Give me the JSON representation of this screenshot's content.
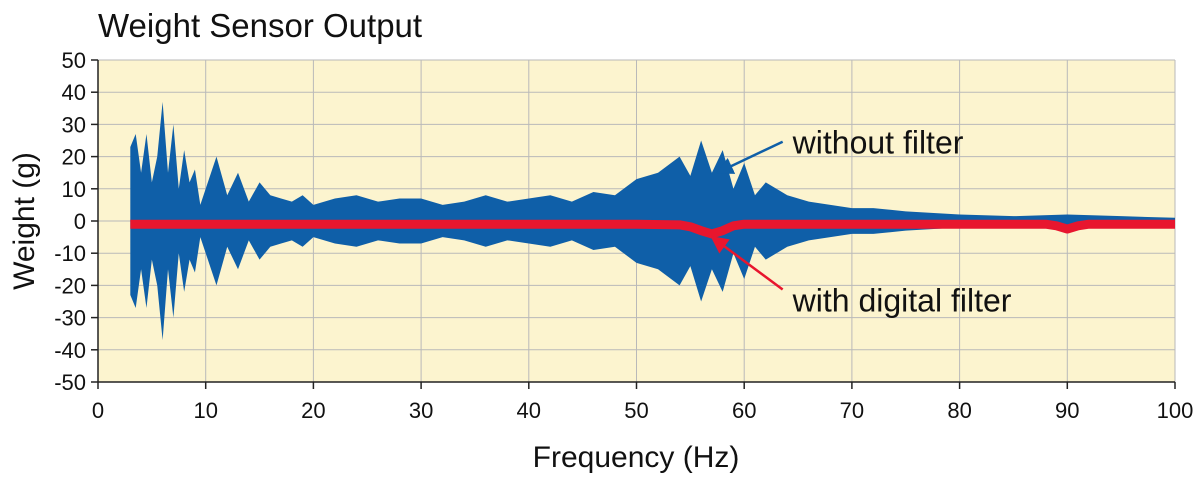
{
  "chart_data": {
    "type": "area",
    "title": "Weight Sensor Output",
    "xlabel": "Frequency (Hz)",
    "ylabel": "Weight (g)",
    "xlim": [
      0,
      100
    ],
    "ylim": [
      -50,
      50
    ],
    "x_ticks": [
      0,
      10,
      20,
      30,
      40,
      50,
      60,
      70,
      80,
      90,
      100
    ],
    "y_ticks": [
      50,
      40,
      30,
      20,
      10,
      0,
      -10,
      -20,
      -30,
      -40,
      -50
    ],
    "grid": true,
    "plot_background": "#fcf4cf",
    "series": [
      {
        "name": "without filter",
        "color": "#0f5fa8",
        "style": "symmetric-envelope",
        "x": [
          3,
          3.5,
          4,
          4.5,
          5,
          5.5,
          6,
          6.5,
          7,
          7.5,
          8,
          8.5,
          9,
          9.5,
          10,
          11,
          12,
          13,
          14,
          15,
          16,
          17,
          18,
          19,
          20,
          22,
          24,
          26,
          28,
          30,
          32,
          34,
          36,
          38,
          40,
          42,
          44,
          46,
          48,
          50,
          52,
          54,
          55,
          56,
          57,
          58,
          59,
          60,
          61,
          62,
          64,
          66,
          68,
          70,
          72,
          75,
          80,
          85,
          90,
          95,
          100
        ],
        "y": [
          23,
          27,
          15,
          27,
          12,
          20,
          37,
          15,
          30,
          10,
          22,
          12,
          16,
          5,
          10,
          20,
          8,
          15,
          6,
          12,
          8,
          7,
          6,
          8,
          5,
          7,
          8,
          6,
          7,
          7,
          5,
          6,
          8,
          6,
          7,
          8,
          6,
          9,
          8,
          13,
          15,
          20,
          14,
          25,
          15,
          22,
          10,
          18,
          8,
          12,
          8,
          6,
          5,
          4,
          4,
          3,
          2,
          1.5,
          2,
          1.5,
          1
        ]
      },
      {
        "name": "with digital filter",
        "color": "#e8162e",
        "style": "thick-line",
        "x": [
          3,
          50,
          54,
          55,
          56,
          57,
          58,
          59,
          60,
          80,
          88,
          89,
          90,
          91,
          92,
          100
        ],
        "y": [
          -1,
          -1,
          -1.2,
          -1.8,
          -3,
          -4,
          -3,
          -1.5,
          -1,
          -1,
          -1,
          -1.5,
          -2.5,
          -1.5,
          -1,
          -1
        ]
      }
    ],
    "annotations": [
      {
        "text": "without filter",
        "target": [
          57.5,
          15
        ],
        "label_pos": [
          64.5,
          24
        ]
      },
      {
        "text": "with digital filter",
        "target": [
          57,
          -5
        ],
        "label_pos": [
          64.5,
          -25
        ]
      }
    ]
  }
}
